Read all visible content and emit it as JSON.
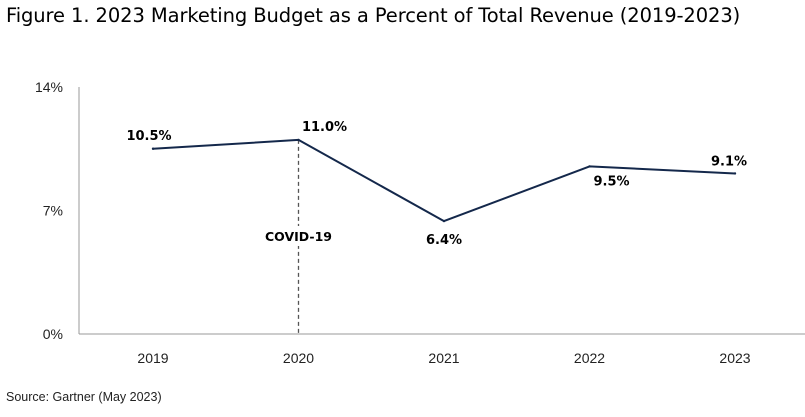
{
  "chart_data": {
    "type": "line",
    "title": "Figure 1. 2023 Marketing Budget as a Percent of Total Revenue (2019-2023)",
    "categories": [
      "2019",
      "2020",
      "2021",
      "2022",
      "2023"
    ],
    "series": [
      {
        "name": "Marketing Budget as a Percent of Total Revenue",
        "values": [
          10.5,
          11.0,
          6.4,
          9.5,
          9.1
        ],
        "labels": [
          "10.5%",
          "11.0%",
          "6.4%",
          "9.5%",
          "9.1%"
        ],
        "color": "#14284b"
      }
    ],
    "ylim": [
      0,
      14
    ],
    "yticks": [
      0,
      7,
      14
    ],
    "ytick_labels": [
      "0%",
      "7%",
      "14%"
    ],
    "xlabel": "",
    "ylabel": "",
    "grid": false,
    "legend": "none",
    "annotations": [
      {
        "text": "COVID-19",
        "x": "2020",
        "style": "dashed-vertical-line"
      }
    ]
  },
  "source": "Source: Gartner (May 2023)"
}
